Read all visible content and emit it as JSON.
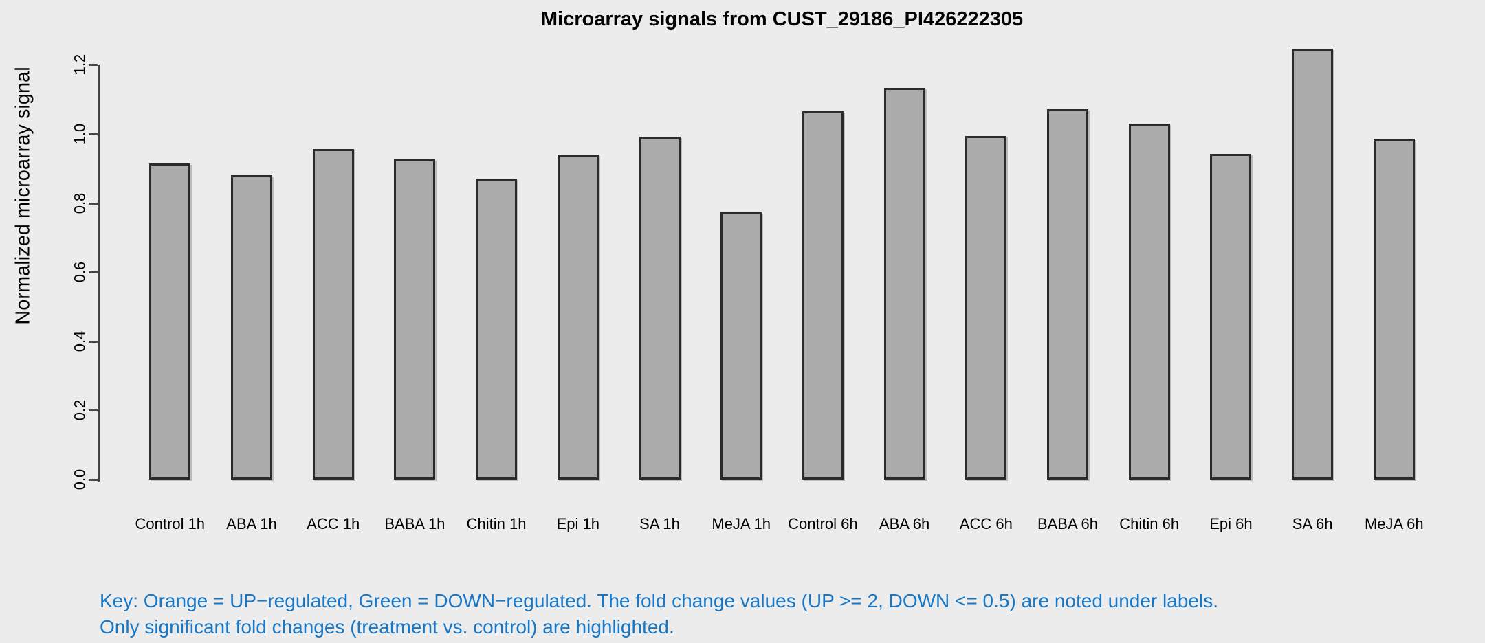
{
  "title": "Microarray signals from CUST_29186_PI426222305",
  "y_axis_label": "Normalized microarray signal",
  "key": {
    "line1": "Key: Orange = UP−regulated, Green = DOWN−regulated. The fold change values (UP >= 2, DOWN <= 0.5) are noted under labels.",
    "line2": "Only significant fold changes (treatment vs. control) are highlighted."
  },
  "colors": {
    "background": "#ECECEC",
    "bar_fill": "#ABABAB",
    "bar_border": "#2B2B2B",
    "axis": "#444444",
    "text": "#000000",
    "key_text": "#1878C8"
  },
  "chart_data": {
    "type": "bar",
    "title": "Microarray signals from CUST_29186_PI426222305",
    "xlabel": "",
    "ylabel": "Normalized microarray signal",
    "categories": [
      "Control 1h",
      "ABA 1h",
      "ACC 1h",
      "BABA 1h",
      "Chitin 1h",
      "Epi 1h",
      "SA 1h",
      "MeJA 1h",
      "Control 6h",
      "ABA 6h",
      "ACC 6h",
      "BABA 6h",
      "Chitin 6h",
      "Epi 6h",
      "SA 6h",
      "MeJA 6h"
    ],
    "values": [
      0.915,
      0.881,
      0.956,
      0.926,
      0.871,
      0.94,
      0.993,
      0.774,
      1.065,
      1.134,
      0.995,
      1.072,
      1.029,
      0.942,
      1.246,
      0.986
    ],
    "yticks": [
      0.0,
      0.2,
      0.4,
      0.6,
      0.8,
      1.0,
      1.2
    ],
    "ylim": [
      0,
      1.2
    ],
    "grid": false,
    "legend": "none",
    "bar_color": "#ABABAB",
    "bar_border_color": "#2B2B2B"
  }
}
